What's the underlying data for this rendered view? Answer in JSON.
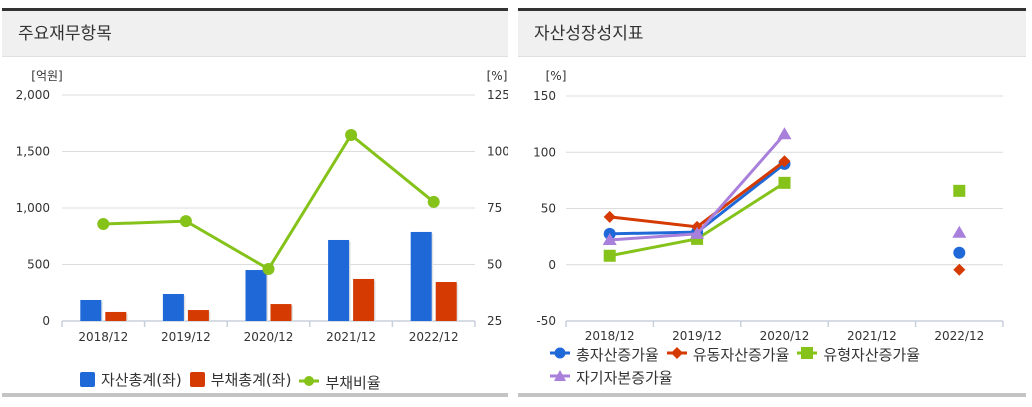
{
  "left_panel": {
    "title": "주요재무항목",
    "left_unit": "[억원]",
    "right_unit": "[%]",
    "left_ticks": [
      "2,000",
      "1,500",
      "1,000",
      "500",
      "0"
    ],
    "right_ticks": [
      "125",
      "100",
      "75",
      "50",
      "25"
    ],
    "categories": [
      "2018/12",
      "2019/12",
      "2020/12",
      "2021/12",
      "2022/12"
    ],
    "legend": [
      {
        "label": "자산총계(좌)",
        "color": "#1f68d8",
        "marker": "square"
      },
      {
        "label": "부채총계(좌)",
        "color": "#d43a02",
        "marker": "square"
      },
      {
        "label": "부채비율",
        "color": "#85c21a",
        "marker": "circle-line"
      }
    ]
  },
  "right_panel": {
    "title": "자산성장성지표",
    "unit": "[%]",
    "ticks": [
      "150",
      "100",
      "50",
      "0",
      "-50"
    ],
    "categories": [
      "2018/12",
      "2019/12",
      "2020/12",
      "2021/12",
      "2022/12"
    ],
    "legend": [
      {
        "label": "총자산증가율",
        "color": "#1f68d8",
        "marker": "circle"
      },
      {
        "label": "유동자산증가율",
        "color": "#d43a02",
        "marker": "diamond"
      },
      {
        "label": "유형자산증가율",
        "color": "#85c21a",
        "marker": "square"
      },
      {
        "label": "자기자본증가율",
        "color": "#a97fdc",
        "marker": "triangle"
      }
    ]
  },
  "chart_data": [
    {
      "type": "bar",
      "title": "주요재무항목",
      "categories": [
        "2018/12",
        "2019/12",
        "2020/12",
        "2021/12",
        "2022/12"
      ],
      "ylabel": "[억원]",
      "ylim": [
        0,
        2000
      ],
      "y2label": "[%]",
      "y2lim": [
        25,
        125
      ],
      "grid": true,
      "legend_position": "bottom",
      "series": [
        {
          "name": "자산총계(좌)",
          "type": "bar",
          "axis": "left",
          "color": "#1f68d8",
          "values": [
            186,
            239,
            451,
            717,
            788
          ]
        },
        {
          "name": "부채총계(좌)",
          "type": "bar",
          "axis": "left",
          "color": "#d43a02",
          "values": [
            80,
            97,
            150,
            372,
            345
          ]
        },
        {
          "name": "부채비율",
          "type": "line",
          "axis": "right",
          "color": "#85c21a",
          "values": [
            67.9,
            69.2,
            48.0,
            107.3,
            77.7
          ]
        }
      ]
    },
    {
      "type": "line",
      "title": "자산성장성지표",
      "categories": [
        "2018/12",
        "2019/12",
        "2020/12",
        "2021/12",
        "2022/12"
      ],
      "ylabel": "[%]",
      "ylim": [
        -50,
        150
      ],
      "grid": true,
      "legend_position": "bottom",
      "series": [
        {
          "name": "총자산증가율",
          "color": "#1f68d8",
          "marker": "circle",
          "values": [
            27.5,
            29.0,
            89.7,
            null,
            10.7
          ]
        },
        {
          "name": "유동자산증가율",
          "color": "#d43a02",
          "marker": "diamond",
          "values": [
            42.6,
            33.7,
            92.0,
            null,
            -4.4
          ]
        },
        {
          "name": "유형자산증가율",
          "color": "#85c21a",
          "marker": "square",
          "values": [
            8.0,
            23.0,
            72.8,
            null,
            65.7
          ]
        },
        {
          "name": "자기자본증가율",
          "color": "#a97fdc",
          "marker": "triangle",
          "values": [
            22.0,
            27.5,
            116.0,
            null,
            28.4
          ]
        }
      ]
    }
  ]
}
